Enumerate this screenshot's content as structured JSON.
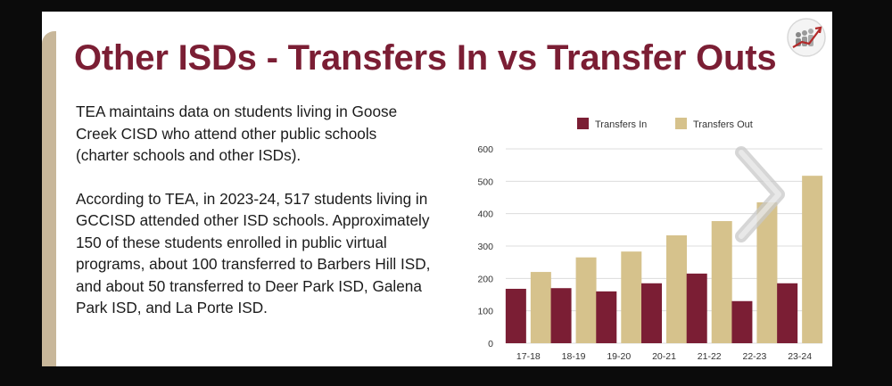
{
  "slide": {
    "title": "Other ISDs - Transfers In vs Transfer Outs",
    "paragraphs": [
      "TEA maintains data on students living in Goose Creek CISD who attend other public schools (charter schools and other ISDs).",
      "According to TEA, in 2023-24, 517 students living in GCCISD attended other ISD schools. Approximately 150 of these students enrolled in public virtual programs, about 100 transferred to Barbers Hill ISD, and about 50 transferred to Deer Park ISD, Galena Park ISD, and La Porte ISD."
    ]
  },
  "colors": {
    "title": "#7b1e34",
    "transfers_in": "#7b1e34",
    "transfers_out": "#d6c28c",
    "accent_bar": "#c8b79a"
  },
  "chart_data": {
    "type": "bar",
    "categories": [
      "17-18",
      "18-19",
      "19-20",
      "20-21",
      "21-22",
      "22-23",
      "23-24"
    ],
    "series": [
      {
        "name": "Transfers In",
        "values": [
          168,
          170,
          160,
          185,
          215,
          130,
          185
        ]
      },
      {
        "name": "Transfers Out",
        "values": [
          220,
          265,
          283,
          333,
          377,
          435,
          517
        ]
      }
    ],
    "yticks": [
      0,
      100,
      200,
      300,
      400,
      500,
      600
    ],
    "ylim": [
      0,
      600
    ],
    "grid": true,
    "legend": "top"
  },
  "nav": {
    "icon": "chevron-right-icon"
  },
  "logo": {
    "icon": "people-growth-logo-icon"
  }
}
